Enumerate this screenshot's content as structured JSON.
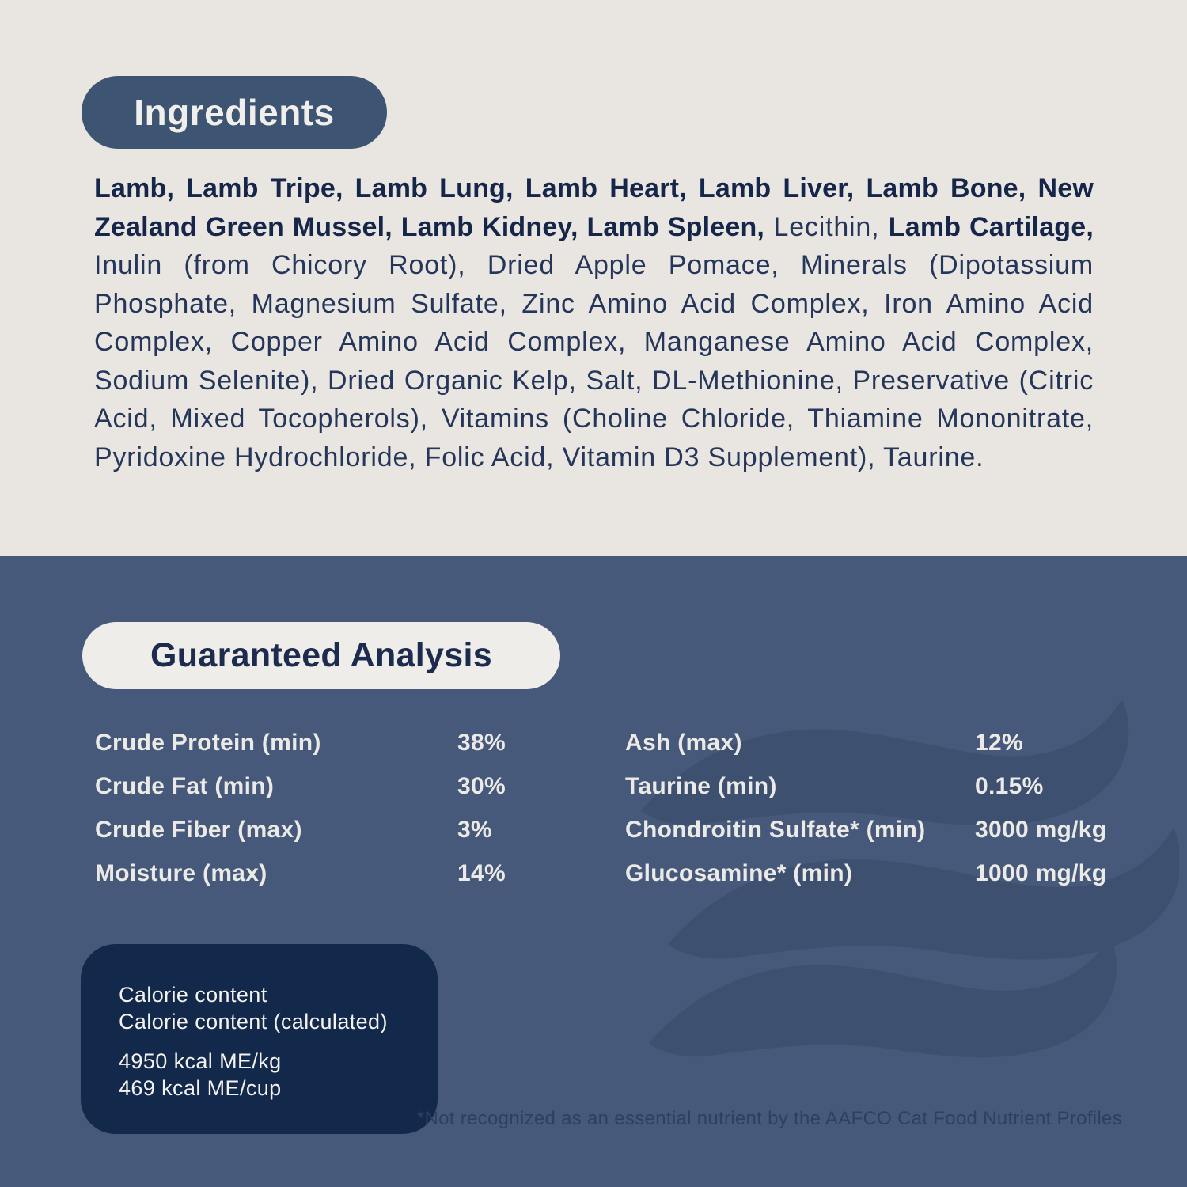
{
  "ingredients": {
    "title": "Ingredients",
    "segments": [
      {
        "bold": true,
        "text": "Lamb, Lamb Tripe, Lamb Lung, Lamb Heart, Lamb Liver, Lamb Bone, New Zealand Green Mussel, Lamb Kidney, Lamb Spleen,"
      },
      {
        "bold": false,
        "text": " Lecithin, "
      },
      {
        "bold": true,
        "text": "Lamb Cartilage,"
      },
      {
        "bold": false,
        "text": " Inulin (from Chicory Root), Dried Apple Pomace, Minerals (Dipotassium Phosphate, Magnesium Sulfate, Zinc Amino Acid Complex, Iron Amino Acid Complex, Copper Amino Acid Complex, Manganese Amino Acid Complex, Sodium Selenite), Dried Organic Kelp, Salt, DL-Methionine, Preservative (Citric Acid, Mixed Tocopherols), Vitamins (Choline Chloride, Thiamine Mononitrate, Pyridoxine Hydrochloride, Folic Acid, Vitamin D3 Supplement), Taurine."
      }
    ]
  },
  "guaranteed_analysis": {
    "title": "Guaranteed Analysis",
    "left_rows": [
      {
        "label": "Crude Protein (min)",
        "value": "38%"
      },
      {
        "label": "Crude Fat (min)",
        "value": "30%"
      },
      {
        "label": "Crude Fiber (max)",
        "value": "3%"
      },
      {
        "label": "Moisture (max)",
        "value": "14%"
      }
    ],
    "right_rows": [
      {
        "label": "Ash (max)",
        "value": "12%"
      },
      {
        "label": "Taurine (min)",
        "value": "0.15%"
      },
      {
        "label": "Chondroitin Sulfate* (min)",
        "value": "3000 mg/kg"
      },
      {
        "label": "Glucosamine* (min)",
        "value": "1000 mg/kg"
      }
    ]
  },
  "calorie_box": {
    "heading_lines": [
      "Calorie content",
      "Calorie content (calculated)"
    ],
    "value_lines": [
      "4950 kcal ME/kg",
      "469 kcal ME/cup"
    ]
  },
  "footnote": "*Not recognized as an essential nutrient by the AAFCO Cat Food Nutrient Profiles",
  "colors": {
    "light_bg": "#e9e6e1",
    "blue_bg": "#46597b",
    "navy_text": "#1d2c4e",
    "pill_blue": "#3d5472",
    "pill_cream": "#efede9",
    "cream_text": "#f1efeb",
    "calorie_box_bg": "#12294b",
    "footnote_text": "#2c4063",
    "watermark": "#3d5070"
  }
}
